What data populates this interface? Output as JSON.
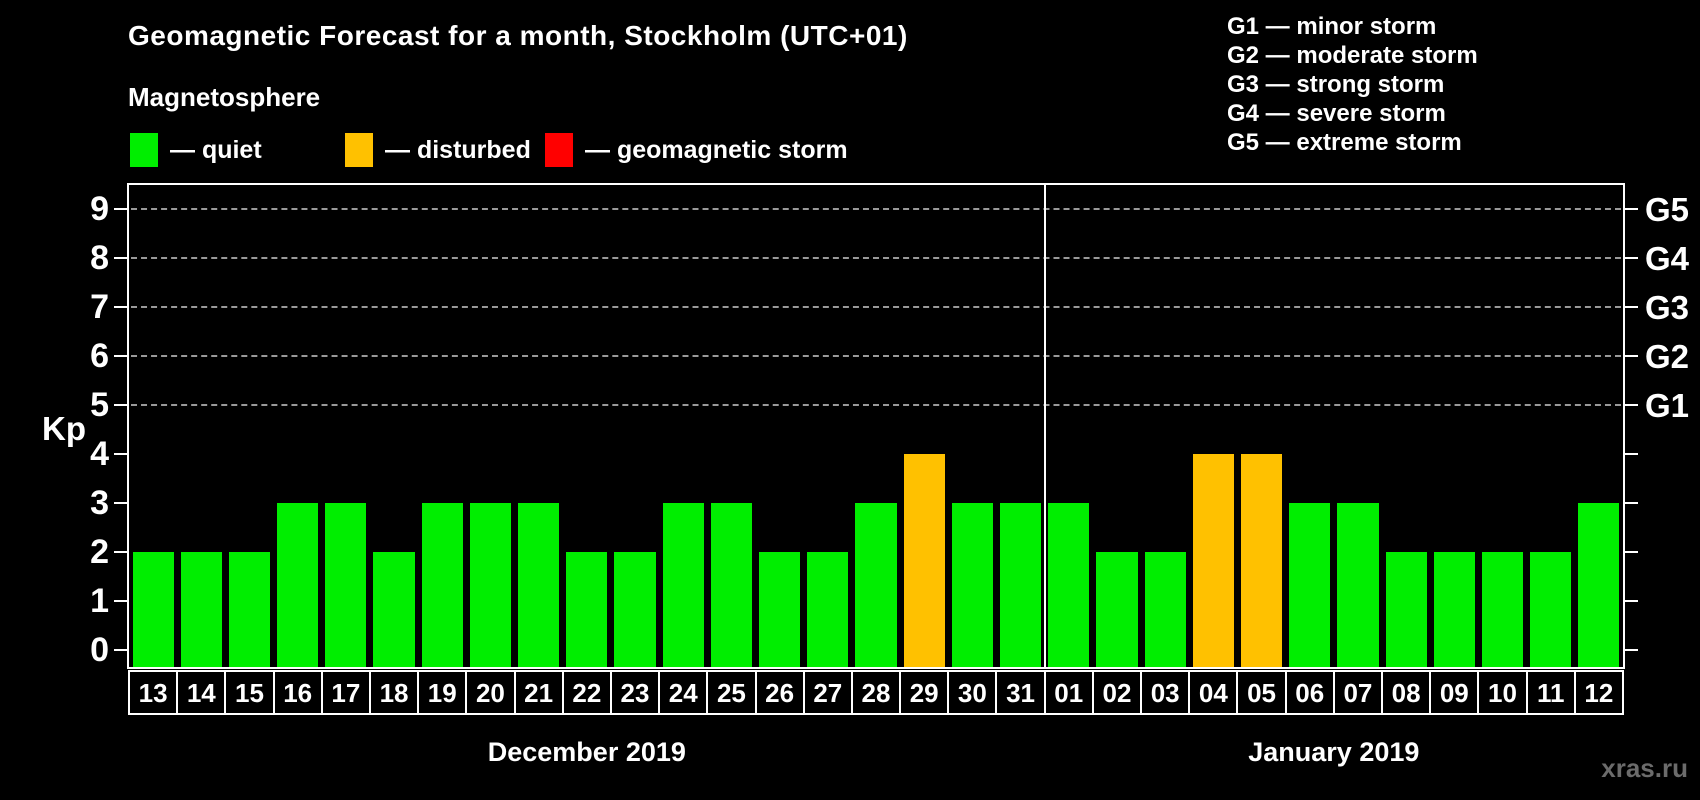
{
  "title": "Geomagnetic Forecast for a month, Stockholm (UTC+01)",
  "subtitle": "Magnetosphere",
  "legend": {
    "items": [
      {
        "status": "quiet",
        "color": "#00EE00",
        "label": "— quiet"
      },
      {
        "status": "disturbed",
        "color": "#FFC100",
        "label": "— disturbed"
      },
      {
        "status": "storm",
        "color": "#FF0000",
        "label": "— geomagnetic storm"
      }
    ]
  },
  "storm_scale_legend": [
    "G1 — minor storm",
    "G2 — moderate storm",
    "G3 — strong storm",
    "G4 — severe storm",
    "G5 — extreme storm"
  ],
  "watermark": "xras.ru",
  "chart_data": {
    "type": "bar",
    "ylabel": "Kp",
    "ylim": [
      0,
      9
    ],
    "yticks": [
      0,
      1,
      2,
      3,
      4,
      5,
      6,
      7,
      8,
      9
    ],
    "gridlines_at": [
      5,
      6,
      7,
      8,
      9
    ],
    "grid": "dashed horizontal at storm levels only",
    "legend_position": "top",
    "right_axis_labels": [
      {
        "label": "G1",
        "kp": 5
      },
      {
        "label": "G2",
        "kp": 6
      },
      {
        "label": "G3",
        "kp": 7
      },
      {
        "label": "G4",
        "kp": 8
      },
      {
        "label": "G5",
        "kp": 9
      }
    ],
    "months": [
      {
        "label": "December 2019",
        "days_count": 19
      },
      {
        "label": "January 2019",
        "days_count": 12
      }
    ],
    "categories": [
      "13",
      "14",
      "15",
      "16",
      "17",
      "18",
      "19",
      "20",
      "21",
      "22",
      "23",
      "24",
      "25",
      "26",
      "27",
      "28",
      "29",
      "30",
      "31",
      "01",
      "02",
      "03",
      "04",
      "05",
      "06",
      "07",
      "08",
      "09",
      "10",
      "11",
      "12"
    ],
    "series": [
      {
        "name": "Kp forecast",
        "values": [
          2,
          2,
          2,
          3,
          3,
          2,
          3,
          3,
          3,
          2,
          2,
          3,
          3,
          2,
          2,
          3,
          4,
          3,
          3,
          3,
          2,
          2,
          4,
          4,
          3,
          3,
          2,
          2,
          2,
          2,
          3
        ],
        "statuses": [
          "quiet",
          "quiet",
          "quiet",
          "quiet",
          "quiet",
          "quiet",
          "quiet",
          "quiet",
          "quiet",
          "quiet",
          "quiet",
          "quiet",
          "quiet",
          "quiet",
          "quiet",
          "quiet",
          "disturbed",
          "quiet",
          "quiet",
          "quiet",
          "quiet",
          "quiet",
          "disturbed",
          "disturbed",
          "quiet",
          "quiet",
          "quiet",
          "quiet",
          "quiet",
          "quiet",
          "quiet"
        ]
      }
    ]
  }
}
